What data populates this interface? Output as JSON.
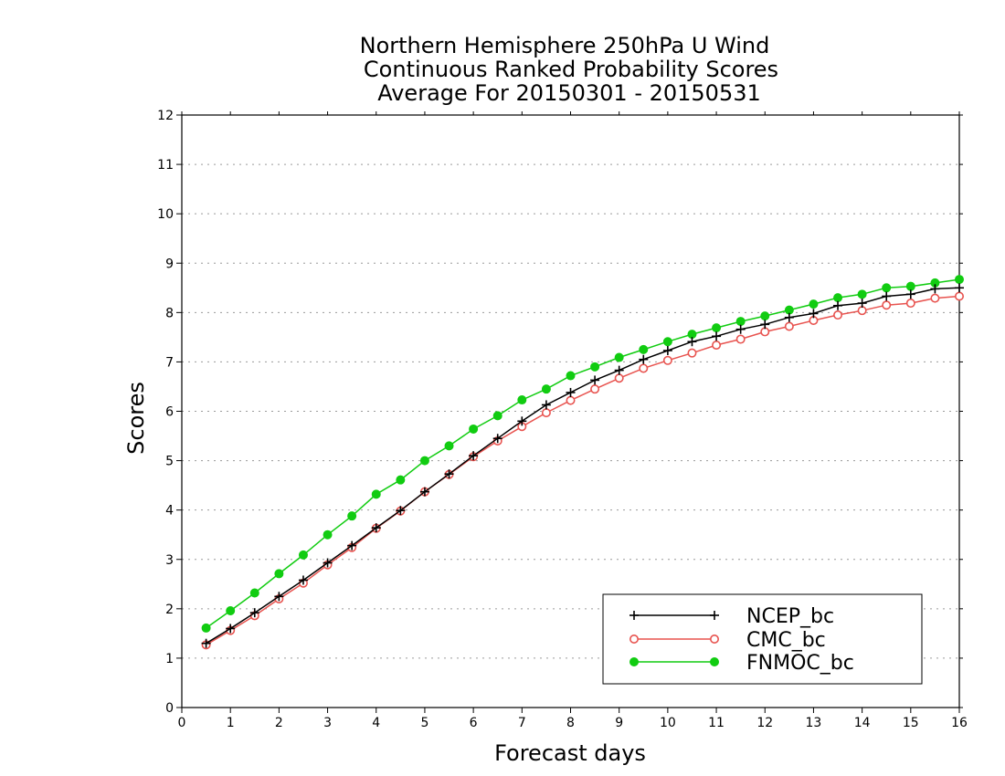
{
  "chart_data": {
    "type": "line",
    "title": [
      "Northern Hemisphere 250hPa U Wind",
      "Continuous Ranked Probability Scores",
      "Average For 20150301 - 20150531"
    ],
    "xlabel": "Forecast days",
    "ylabel": "Scores",
    "xlim": [
      0,
      16
    ],
    "ylim": [
      0,
      12
    ],
    "xticks": [
      0,
      1,
      2,
      3,
      4,
      5,
      6,
      7,
      8,
      9,
      10,
      11,
      12,
      13,
      14,
      15,
      16
    ],
    "yticks": [
      0,
      1,
      2,
      3,
      4,
      5,
      6,
      7,
      8,
      9,
      10,
      11,
      12
    ],
    "grid": "horizontal-dotted",
    "legend_position": "bottom-right",
    "x": [
      0.5,
      1,
      1.5,
      2,
      2.5,
      3,
      3.5,
      4,
      4.5,
      5,
      5.5,
      6,
      6.5,
      7,
      7.5,
      8,
      8.5,
      9,
      9.5,
      10,
      10.5,
      11,
      11.5,
      12,
      12.5,
      13,
      13.5,
      14,
      14.5,
      15,
      15.5,
      16
    ],
    "series": [
      {
        "name": "NCEP_bc",
        "color": "#000000",
        "marker": "plus",
        "values": [
          1.3,
          1.6,
          1.92,
          2.25,
          2.58,
          2.93,
          3.28,
          3.64,
          3.99,
          4.37,
          4.73,
          5.1,
          5.45,
          5.8,
          6.13,
          6.38,
          6.63,
          6.83,
          7.05,
          7.23,
          7.41,
          7.52,
          7.66,
          7.76,
          7.9,
          7.98,
          8.14,
          8.19,
          8.33,
          8.37,
          8.48,
          8.5
        ]
      },
      {
        "name": "CMC_bc",
        "color": "#e8534f",
        "marker": "open-circle",
        "values": [
          1.27,
          1.56,
          1.86,
          2.2,
          2.52,
          2.89,
          3.24,
          3.63,
          3.98,
          4.37,
          4.72,
          5.08,
          5.4,
          5.69,
          5.97,
          6.22,
          6.45,
          6.67,
          6.87,
          7.03,
          7.18,
          7.34,
          7.46,
          7.61,
          7.72,
          7.84,
          7.95,
          8.04,
          8.15,
          8.19,
          8.29,
          8.33
        ]
      },
      {
        "name": "FNMOC_bc",
        "color": "#11cc11",
        "marker": "filled-circle",
        "values": [
          1.61,
          1.96,
          2.32,
          2.71,
          3.09,
          3.5,
          3.88,
          4.32,
          4.61,
          5.0,
          5.3,
          5.64,
          5.91,
          6.23,
          6.45,
          6.72,
          6.9,
          7.09,
          7.25,
          7.41,
          7.56,
          7.69,
          7.82,
          7.93,
          8.05,
          8.17,
          8.3,
          8.37,
          8.5,
          8.53,
          8.6,
          8.67
        ]
      }
    ]
  }
}
